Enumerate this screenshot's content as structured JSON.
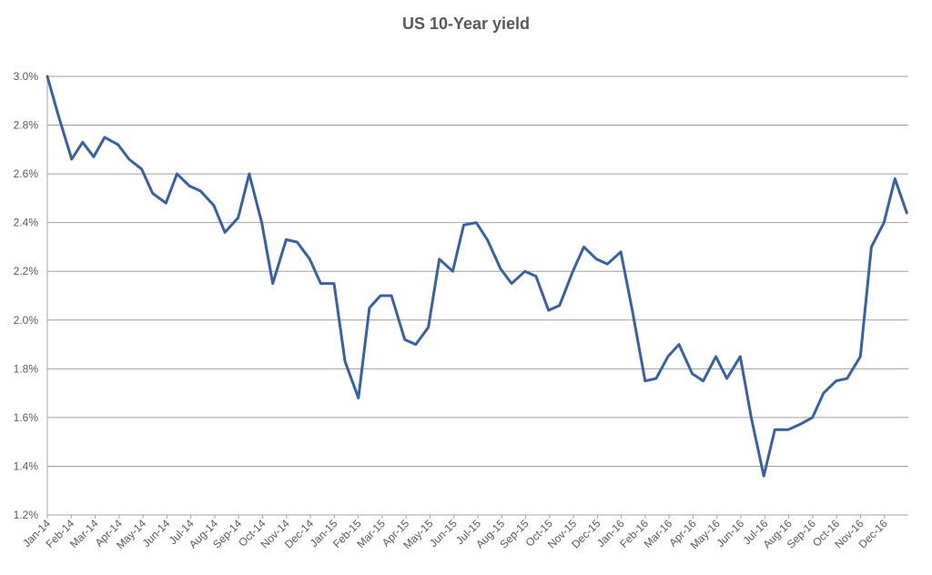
{
  "chart_data": {
    "type": "line",
    "title": "US 10-Year yield",
    "xlabel": "",
    "ylabel": "",
    "ylim": [
      1.2,
      3.0
    ],
    "y_ticks": [
      1.2,
      1.4,
      1.6,
      1.8,
      2.0,
      2.2,
      2.4,
      2.6,
      2.8,
      3.0
    ],
    "y_tick_labels": [
      "1.2%",
      "1.4%",
      "1.6%",
      "1.8%",
      "2.0%",
      "2.2%",
      "2.4%",
      "2.6%",
      "2.8%",
      "3.0%"
    ],
    "x_tick_labels": [
      "Jan-14",
      "Feb-14",
      "Mar-14",
      "Apr-14",
      "May-14",
      "Jun-14",
      "Jul-14",
      "Aug-14",
      "Sep-14",
      "Oct-14",
      "Nov-14",
      "Dec-14",
      "Jan-15",
      "Feb-15",
      "Mar-15",
      "Apr-15",
      "May-15",
      "Jun-15",
      "Jul-15",
      "Aug-15",
      "Sep-15",
      "Oct-15",
      "Nov-15",
      "Dec-15",
      "Jan-16",
      "Feb-16",
      "Mar-16",
      "Apr-16",
      "May-16",
      "Jun-16",
      "Jul-16",
      "Aug-16",
      "Sep-16",
      "Oct-16",
      "Nov-16",
      "Dec-16"
    ],
    "grid": true,
    "legend": "none",
    "line_color": "#3461A8",
    "series": [
      {
        "x": [
          "2014-01-01",
          "2014-01-15",
          "2014-02-01",
          "2014-02-15",
          "2014-03-01",
          "2014-03-15",
          "2014-04-01",
          "2014-04-15",
          "2014-05-01",
          "2014-05-15",
          "2014-06-01",
          "2014-06-15",
          "2014-07-01",
          "2014-07-15",
          "2014-08-01",
          "2014-08-15",
          "2014-09-01",
          "2014-09-15",
          "2014-10-01",
          "2014-10-15",
          "2014-11-01",
          "2014-11-15",
          "2014-12-01",
          "2014-12-15",
          "2015-01-01",
          "2015-01-15",
          "2015-02-01",
          "2015-02-15",
          "2015-03-01",
          "2015-03-15",
          "2015-04-01",
          "2015-04-15",
          "2015-05-01",
          "2015-05-15",
          "2015-06-01",
          "2015-06-15",
          "2015-07-01",
          "2015-07-15",
          "2015-08-01",
          "2015-08-15",
          "2015-09-01",
          "2015-09-15",
          "2015-10-01",
          "2015-10-15",
          "2015-11-01",
          "2015-11-15",
          "2015-12-01",
          "2015-12-15",
          "2016-01-01",
          "2016-01-15",
          "2016-02-01",
          "2016-02-15",
          "2016-03-01",
          "2016-03-15",
          "2016-04-01",
          "2016-04-15",
          "2016-05-01",
          "2016-05-15",
          "2016-06-01",
          "2016-06-15",
          "2016-07-01",
          "2016-07-15",
          "2016-08-01",
          "2016-08-15",
          "2016-09-01",
          "2016-09-15",
          "2016-10-01",
          "2016-10-15",
          "2016-11-01",
          "2016-11-15",
          "2016-12-01",
          "2016-12-15",
          "2016-12-30"
        ],
        "values": [
          3.0,
          2.84,
          2.66,
          2.73,
          2.67,
          2.75,
          2.72,
          2.66,
          2.62,
          2.52,
          2.48,
          2.6,
          2.55,
          2.53,
          2.47,
          2.36,
          2.42,
          2.6,
          2.4,
          2.15,
          2.33,
          2.32,
          2.25,
          2.15,
          2.15,
          1.83,
          1.68,
          2.05,
          2.1,
          2.1,
          1.92,
          1.9,
          1.97,
          2.25,
          2.2,
          2.39,
          2.4,
          2.33,
          2.21,
          2.15,
          2.2,
          2.18,
          2.04,
          2.06,
          2.2,
          2.3,
          2.25,
          2.23,
          2.28,
          2.05,
          1.75,
          1.76,
          1.85,
          1.9,
          1.78,
          1.75,
          1.85,
          1.76,
          1.85,
          1.6,
          1.36,
          1.55,
          1.55,
          1.57,
          1.6,
          1.7,
          1.75,
          1.76,
          1.85,
          2.3,
          2.4,
          2.58,
          2.44
        ]
      }
    ]
  }
}
